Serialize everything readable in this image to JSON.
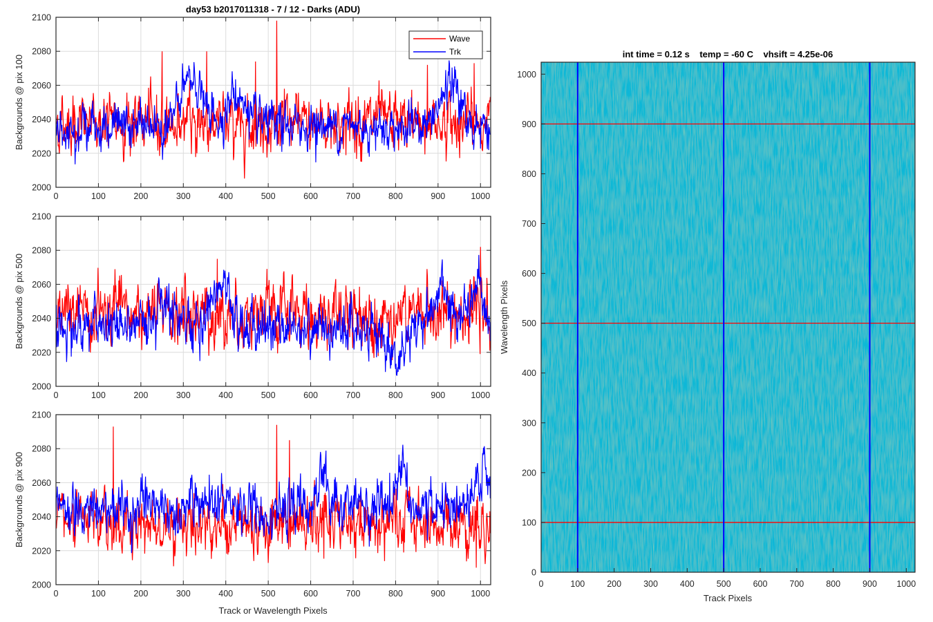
{
  "chart_data": [
    {
      "type": "line",
      "title": "day53 b2017011318 - 7 / 12 - Darks (ADU)",
      "ylabel": "Backgrounds @ pix 100",
      "xlabel": "",
      "xlim": [
        0,
        1024
      ],
      "ylim": [
        2000,
        2100
      ],
      "xticks": [
        0,
        100,
        200,
        300,
        400,
        500,
        600,
        700,
        800,
        900,
        1000
      ],
      "yticks": [
        2000,
        2020,
        2040,
        2060,
        2080,
        2100
      ],
      "xtick_labels": [
        "0",
        "100",
        "200",
        "300",
        "400",
        "500",
        "600",
        "700",
        "800",
        "900",
        "1000"
      ],
      "ytick_labels": [
        "2000",
        "2020",
        "2040",
        "2060",
        "2080",
        "2100"
      ],
      "grid": true,
      "legend": "top-right",
      "series": [
        {
          "name": "Wave",
          "color": "#ff0000",
          "mean": 2038,
          "noise": 8,
          "spikes": [
            [
              250,
              2080
            ],
            [
              355,
              2080
            ],
            [
              520,
              2098
            ],
            [
              470,
              2074
            ],
            [
              875,
              2072
            ],
            [
              985,
              2073
            ]
          ]
        },
        {
          "name": "Trk",
          "color": "#0000ff",
          "mean": 2036,
          "noise": 6,
          "bumps": [
            [
              320,
              28,
              35
            ],
            [
              425,
              18,
              30
            ],
            [
              930,
              25,
              30
            ]
          ]
        }
      ]
    },
    {
      "type": "line",
      "ylabel": "Backgrounds @ pix 500",
      "xlabel": "",
      "xlim": [
        0,
        1024
      ],
      "ylim": [
        2000,
        2100
      ],
      "xticks": [
        0,
        100,
        200,
        300,
        400,
        500,
        600,
        700,
        800,
        900,
        1000
      ],
      "yticks": [
        2000,
        2020,
        2040,
        2060,
        2080,
        2100
      ],
      "xtick_labels": [
        "0",
        "100",
        "200",
        "300",
        "400",
        "500",
        "600",
        "700",
        "800",
        "900",
        "1000"
      ],
      "ytick_labels": [
        "2000",
        "2020",
        "2040",
        "2060",
        "2080",
        "2100"
      ],
      "grid": true,
      "series": [
        {
          "name": "Wave",
          "color": "#ff0000",
          "mean": 2042,
          "noise": 9,
          "spikes": [
            [
              380,
              2075
            ],
            [
              1000,
              2082
            ]
          ]
        },
        {
          "name": "Trk",
          "color": "#0000ff",
          "mean": 2035,
          "noise": 7,
          "bumps": [
            [
              255,
              20,
              25
            ],
            [
              385,
              25,
              25
            ],
            [
              800,
              -18,
              30
            ],
            [
              905,
              20,
              30
            ],
            [
              990,
              25,
              20
            ]
          ]
        }
      ]
    },
    {
      "type": "line",
      "ylabel": "Backgrounds @ pix 900",
      "xlabel": "Track or Wavelength Pixels",
      "xlim": [
        0,
        1024
      ],
      "ylim": [
        2000,
        2100
      ],
      "xticks": [
        0,
        100,
        200,
        300,
        400,
        500,
        600,
        700,
        800,
        900,
        1000
      ],
      "yticks": [
        2000,
        2020,
        2040,
        2060,
        2080,
        2100
      ],
      "xtick_labels": [
        "0",
        "100",
        "200",
        "300",
        "400",
        "500",
        "600",
        "700",
        "800",
        "900",
        "1000"
      ],
      "ytick_labels": [
        "2000",
        "2020",
        "2040",
        "2060",
        "2080",
        "2100"
      ],
      "grid": true,
      "series": [
        {
          "name": "Wave",
          "color": "#ff0000",
          "mean": 2036,
          "noise": 8,
          "spikes": [
            [
              135,
              2093
            ],
            [
              520,
              2094
            ],
            [
              550,
              2085
            ],
            [
              990,
              2010
            ]
          ]
        },
        {
          "name": "Trk",
          "color": "#0000ff",
          "mean": 2045,
          "noise": 7,
          "bumps": [
            [
              630,
              22,
              15
            ],
            [
              810,
              28,
              15
            ],
            [
              1010,
              25,
              20
            ]
          ]
        }
      ]
    },
    {
      "type": "heatmap",
      "title": "int time = 0.12 s    temp = -60 C    vhsift = 4.25e-06",
      "xlabel": "Track Pixels",
      "ylabel": "Wavelength Pixels",
      "xlim": [
        0,
        1024
      ],
      "ylim": [
        0,
        1024
      ],
      "xticks": [
        0,
        100,
        200,
        300,
        400,
        500,
        600,
        700,
        800,
        900,
        1000
      ],
      "yticks": [
        0,
        100,
        200,
        300,
        400,
        500,
        600,
        700,
        800,
        900,
        1000
      ],
      "xtick_labels": [
        "0",
        "100",
        "200",
        "300",
        "400",
        "500",
        "600",
        "700",
        "800",
        "900",
        "1000"
      ],
      "ytick_labels": [
        "0",
        "100",
        "200",
        "300",
        "400",
        "500",
        "600",
        "700",
        "800",
        "900",
        "1000"
      ],
      "colormap": "parula",
      "base_color": "#1aa3c8",
      "vertical_lines": {
        "color": "#0000ff",
        "x": [
          100,
          500,
          900
        ]
      },
      "horizontal_lines": {
        "color": "#ff0000",
        "y": [
          100,
          500,
          900
        ]
      }
    }
  ]
}
